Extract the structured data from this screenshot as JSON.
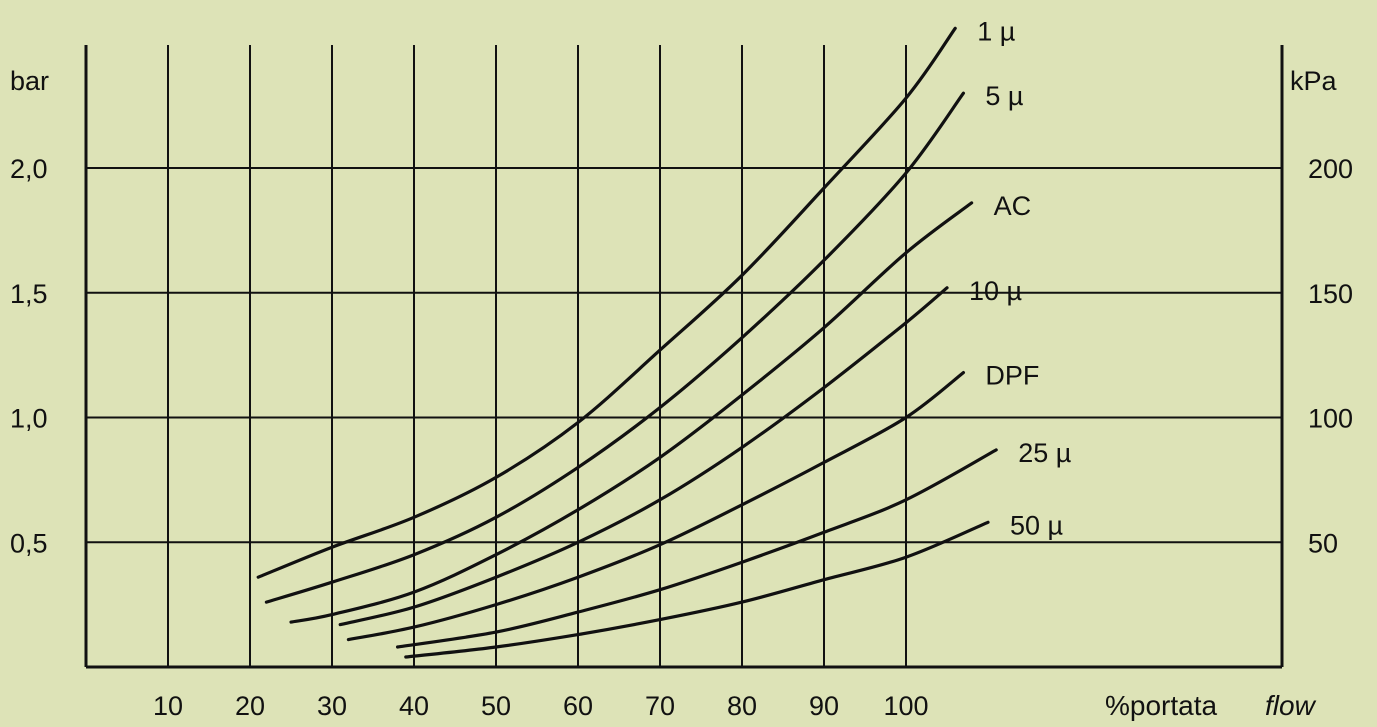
{
  "chart_data": {
    "type": "line",
    "y_unit_left": "bar",
    "y_unit_right": "kPa",
    "x_unit_label": "%portata",
    "x_unit_label_italic": "flow",
    "xlim": [
      0,
      110
    ],
    "ylim": [
      0,
      2.4
    ],
    "x_ticks": [
      {
        "value": 10,
        "label": "10"
      },
      {
        "value": 20,
        "label": "20"
      },
      {
        "value": 30,
        "label": "30"
      },
      {
        "value": 40,
        "label": "40"
      },
      {
        "value": 50,
        "label": "50"
      },
      {
        "value": 60,
        "label": "60"
      },
      {
        "value": 70,
        "label": "70"
      },
      {
        "value": 80,
        "label": "80"
      },
      {
        "value": 90,
        "label": "90"
      },
      {
        "value": 100,
        "label": "100"
      }
    ],
    "y_ticks_left": [
      {
        "value": 0.5,
        "label": "0,5"
      },
      {
        "value": 1.0,
        "label": "1,0"
      },
      {
        "value": 1.5,
        "label": "1,5"
      },
      {
        "value": 2.0,
        "label": "2,0"
      }
    ],
    "y_ticks_right": [
      {
        "value": 0.5,
        "label": "50"
      },
      {
        "value": 1.0,
        "label": "100"
      },
      {
        "value": 1.5,
        "label": "150"
      },
      {
        "value": 2.0,
        "label": "200"
      }
    ],
    "grid": true,
    "series": [
      {
        "name": "1 µ",
        "points": [
          [
            21,
            0.36
          ],
          [
            30,
            0.48
          ],
          [
            40,
            0.6
          ],
          [
            50,
            0.76
          ],
          [
            60,
            0.98
          ],
          [
            70,
            1.27
          ],
          [
            80,
            1.57
          ],
          [
            90,
            1.92
          ],
          [
            100,
            2.28
          ],
          [
            106,
            2.56
          ]
        ]
      },
      {
        "name": "5 µ",
        "points": [
          [
            22,
            0.26
          ],
          [
            30,
            0.34
          ],
          [
            40,
            0.45
          ],
          [
            50,
            0.6
          ],
          [
            60,
            0.8
          ],
          [
            70,
            1.04
          ],
          [
            80,
            1.32
          ],
          [
            90,
            1.63
          ],
          [
            100,
            1.98
          ],
          [
            107,
            2.3
          ]
        ]
      },
      {
        "name": "AC",
        "points": [
          [
            25,
            0.18
          ],
          [
            30,
            0.21
          ],
          [
            40,
            0.3
          ],
          [
            50,
            0.45
          ],
          [
            60,
            0.63
          ],
          [
            70,
            0.84
          ],
          [
            80,
            1.09
          ],
          [
            90,
            1.36
          ],
          [
            100,
            1.66
          ],
          [
            108,
            1.86
          ]
        ]
      },
      {
        "name": "10 µ",
        "points": [
          [
            31,
            0.17
          ],
          [
            40,
            0.24
          ],
          [
            50,
            0.36
          ],
          [
            60,
            0.5
          ],
          [
            70,
            0.67
          ],
          [
            80,
            0.88
          ],
          [
            90,
            1.12
          ],
          [
            100,
            1.38
          ],
          [
            105,
            1.52
          ]
        ]
      },
      {
        "name": "DPF",
        "points": [
          [
            32,
            0.11
          ],
          [
            40,
            0.16
          ],
          [
            50,
            0.25
          ],
          [
            60,
            0.36
          ],
          [
            70,
            0.49
          ],
          [
            80,
            0.65
          ],
          [
            90,
            0.82
          ],
          [
            100,
            1.0
          ],
          [
            107,
            1.18
          ]
        ]
      },
      {
        "name": "25 µ",
        "points": [
          [
            38,
            0.08
          ],
          [
            50,
            0.14
          ],
          [
            60,
            0.22
          ],
          [
            70,
            0.31
          ],
          [
            80,
            0.42
          ],
          [
            90,
            0.54
          ],
          [
            100,
            0.67
          ],
          [
            111,
            0.87
          ]
        ]
      },
      {
        "name": "50 µ",
        "points": [
          [
            39,
            0.04
          ],
          [
            50,
            0.08
          ],
          [
            60,
            0.13
          ],
          [
            70,
            0.19
          ],
          [
            80,
            0.26
          ],
          [
            90,
            0.35
          ],
          [
            100,
            0.44
          ],
          [
            110,
            0.58
          ]
        ]
      }
    ]
  }
}
